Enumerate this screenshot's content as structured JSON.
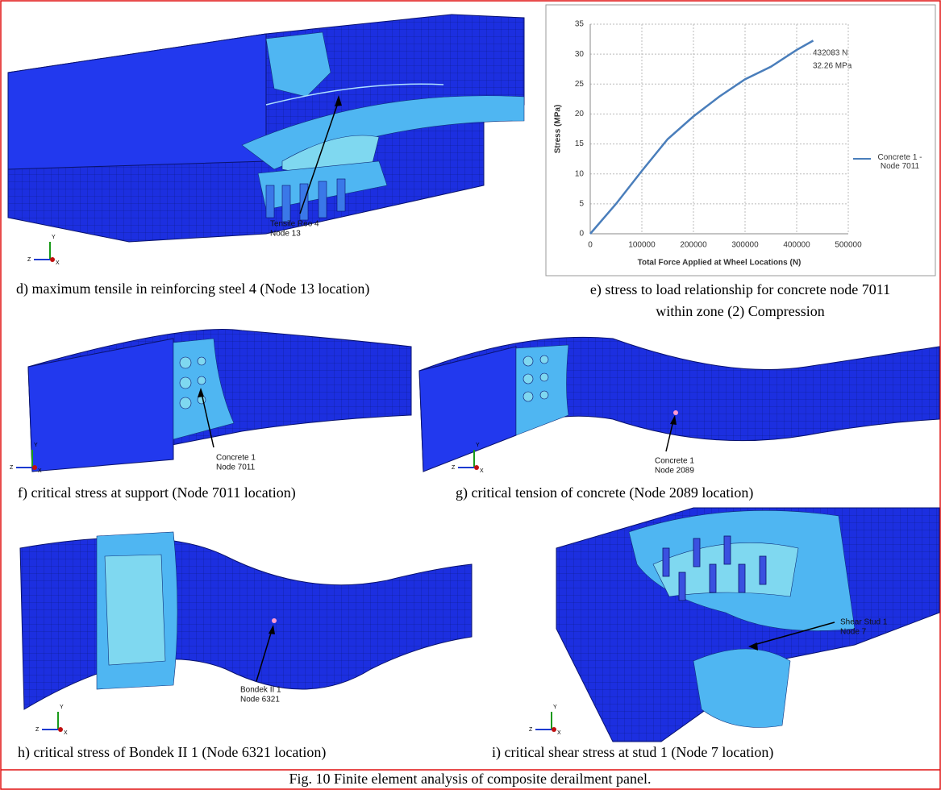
{
  "figure": {
    "caption": "Fig. 10 Finite element analysis of composite derailment panel.",
    "triad_labels": [
      "Y",
      "Z",
      "X"
    ],
    "panels": [
      {
        "caption": "d) maximum tensile in reinforcing steel 4   (Node 13 location)",
        "labels": [
          "Tensile Reo 4",
          "Node 13"
        ]
      },
      {
        "caption": "f) critical stress at support (Node 7011 location)",
        "labels": [
          "Concrete 1",
          "Node 7011"
        ]
      },
      {
        "caption": "g) critical tension of concrete (Node 2089 location)",
        "labels": [
          "Concrete 1",
          "Node 2089"
        ]
      },
      {
        "caption": "h) critical stress of Bondek II 1 (Node 6321 location)",
        "labels": [
          "Bondek II 1",
          "Node 6321"
        ]
      },
      {
        "caption": "i) critical shear stress at stud 1 (Node 7 location)",
        "labels": [
          "Shear Stud 1",
          "Node 7"
        ]
      }
    ],
    "chart_caption": [
      "e) stress to load relationship for concrete node 7011",
      "within zone (2) Compression"
    ]
  },
  "chart_data": {
    "type": "line",
    "xlabel": "Total Force Applied at Wheel Locations (N)",
    "ylabel": "Stress (MPa)",
    "x": [
      0,
      50000,
      100000,
      150000,
      200000,
      250000,
      300000,
      350000,
      400000,
      432083
    ],
    "series": [
      {
        "name": "Concrete 1 - Node 7011",
        "color": "#4a7ebb",
        "values": [
          0,
          5,
          10.5,
          15.8,
          19.6,
          22.9,
          25.8,
          27.9,
          30.7,
          32.26
        ]
      }
    ],
    "annotations": [
      "432083 N",
      "32.26 MPa"
    ],
    "xlim": [
      0,
      500000
    ],
    "xticks": [
      0,
      100000,
      200000,
      300000,
      400000,
      500000
    ],
    "ylim": [
      0,
      35
    ],
    "yticks": [
      0,
      5,
      10,
      15,
      20,
      25,
      30,
      35
    ],
    "grid": true,
    "legend": "right"
  }
}
